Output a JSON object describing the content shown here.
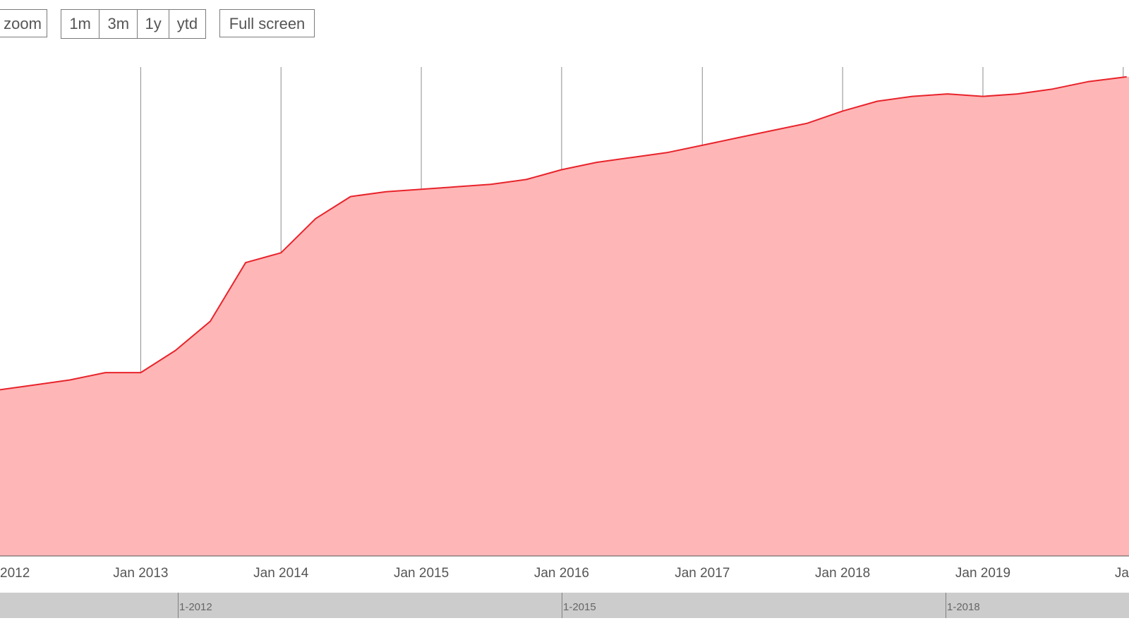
{
  "toolbar": {
    "zoom_label": "zoom",
    "range_buttons": [
      "1m",
      "3m",
      "1y",
      "ytd"
    ],
    "fullscreen_label": "Full screen"
  },
  "colors": {
    "line": "#e8232b",
    "fill": "#ffb6b6",
    "gridline": "#8c8c8c",
    "navigator_bg": "#cccccc"
  },
  "chart_data": {
    "type": "area",
    "title": "",
    "xlabel": "",
    "ylabel": "",
    "x_tick_labels": [
      "2012",
      "Jan 2013",
      "Jan 2014",
      "Jan 2015",
      "Jan 2016",
      "Jan 2017",
      "Jan 2018",
      "Jan 2019",
      "Ja"
    ],
    "x_tick_dates": [
      "2012-01-01",
      "2013-01-01",
      "2014-01-01",
      "2015-01-01",
      "2016-01-01",
      "2017-01-01",
      "2018-01-01",
      "2019-01-01",
      "2020-01-01"
    ],
    "xlim": [
      "2012-01-01",
      "2020-01-16"
    ],
    "ylim": [
      0,
      100
    ],
    "grid": "vertical",
    "legend": "none",
    "series": [
      {
        "x": [
          "2012-01-01",
          "2012-04-01",
          "2012-07-01",
          "2012-10-01",
          "2013-01-01",
          "2013-04-01",
          "2013-07-01",
          "2013-10-01",
          "2014-01-01",
          "2014-04-01",
          "2014-07-01",
          "2014-10-01",
          "2015-01-01",
          "2015-04-01",
          "2015-07-01",
          "2015-10-01",
          "2016-01-01",
          "2016-04-01",
          "2016-07-01",
          "2016-10-01",
          "2017-01-01",
          "2017-04-01",
          "2017-07-01",
          "2017-10-01",
          "2018-01-01",
          "2018-04-01",
          "2018-07-01",
          "2018-10-01",
          "2019-01-01",
          "2019-04-01",
          "2019-07-01",
          "2019-10-01",
          "2020-01-10"
        ],
        "values": [
          34,
          35,
          36,
          37.5,
          37.5,
          42,
          48,
          60,
          62,
          69,
          73.5,
          74.5,
          75,
          75.5,
          76,
          77,
          79,
          80.5,
          81.5,
          82.5,
          84,
          85.5,
          87,
          88.5,
          91,
          93,
          94,
          94.5,
          94,
          94.5,
          95.5,
          97,
          98
        ]
      }
    ]
  },
  "navigator": {
    "labels": [
      "1-2012",
      "1-2015",
      "1-2018"
    ]
  }
}
